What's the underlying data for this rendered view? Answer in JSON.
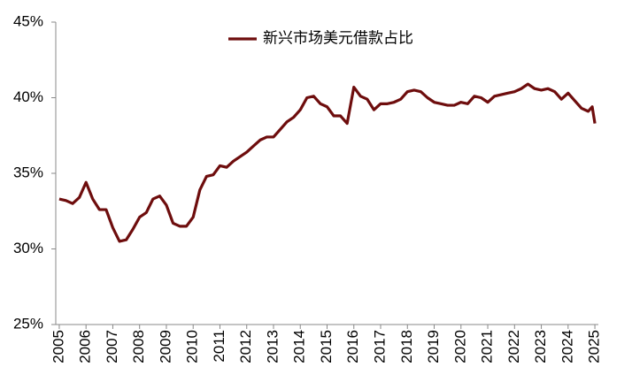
{
  "chart_data": {
    "type": "line",
    "x": [
      2005.0,
      2005.25,
      2005.5,
      2005.75,
      2006.0,
      2006.25,
      2006.5,
      2006.75,
      2007.0,
      2007.25,
      2007.5,
      2007.75,
      2008.0,
      2008.25,
      2008.5,
      2008.75,
      2009.0,
      2009.25,
      2009.5,
      2009.75,
      2010.0,
      2010.25,
      2010.5,
      2010.75,
      2011.0,
      2011.25,
      2011.5,
      2011.75,
      2012.0,
      2012.25,
      2012.5,
      2012.75,
      2013.0,
      2013.25,
      2013.5,
      2013.75,
      2014.0,
      2014.25,
      2014.5,
      2014.75,
      2015.0,
      2015.25,
      2015.5,
      2015.75,
      2016.0,
      2016.25,
      2016.5,
      2016.75,
      2017.0,
      2017.25,
      2017.5,
      2017.75,
      2018.0,
      2018.25,
      2018.5,
      2018.75,
      2019.0,
      2019.25,
      2019.5,
      2019.75,
      2020.0,
      2020.25,
      2020.5,
      2020.75,
      2021.0,
      2021.25,
      2021.5,
      2021.75,
      2022.0,
      2022.25,
      2022.5,
      2022.75,
      2023.0,
      2023.25,
      2023.5,
      2023.75,
      2024.0,
      2024.25,
      2024.5,
      2024.75,
      2024.9,
      2025.0
    ],
    "series": [
      {
        "name": "新兴市场美元借款占比",
        "color": "#6e0d0d",
        "values": [
          33.3,
          33.2,
          33.0,
          33.4,
          34.4,
          33.3,
          32.6,
          32.6,
          31.4,
          30.5,
          30.6,
          31.3,
          32.1,
          32.4,
          33.3,
          33.5,
          32.9,
          31.7,
          31.5,
          31.5,
          32.1,
          33.9,
          34.8,
          34.9,
          35.5,
          35.4,
          35.8,
          36.1,
          36.4,
          36.8,
          37.2,
          37.4,
          37.4,
          37.9,
          38.4,
          38.7,
          39.2,
          40.0,
          40.1,
          39.6,
          39.4,
          38.8,
          38.8,
          38.3,
          40.7,
          40.1,
          39.9,
          39.2,
          39.6,
          39.6,
          39.7,
          39.9,
          40.4,
          40.5,
          40.4,
          40.0,
          39.7,
          39.6,
          39.5,
          39.5,
          39.7,
          39.6,
          40.1,
          40.0,
          39.7,
          40.1,
          40.2,
          40.3,
          40.4,
          40.6,
          40.9,
          40.6,
          40.5,
          40.6,
          40.4,
          39.9,
          40.3,
          39.8,
          39.3,
          39.1,
          39.4,
          38.3
        ]
      }
    ],
    "xlim": [
      2004.87,
      2025.13
    ],
    "xticks": [
      2005,
      2006,
      2007,
      2008,
      2009,
      2010,
      2011,
      2012,
      2013,
      2014,
      2015,
      2016,
      2017,
      2018,
      2019,
      2020,
      2021,
      2022,
      2023,
      2024,
      2025
    ],
    "ylim": [
      25,
      45
    ],
    "yticks": [
      {
        "value": 25,
        "label": "25%"
      },
      {
        "value": 30,
        "label": "30%"
      },
      {
        "value": 35,
        "label": "35%"
      },
      {
        "value": 40,
        "label": "40%"
      },
      {
        "value": 45,
        "label": "45%"
      }
    ],
    "grid": false,
    "legend": "top"
  }
}
